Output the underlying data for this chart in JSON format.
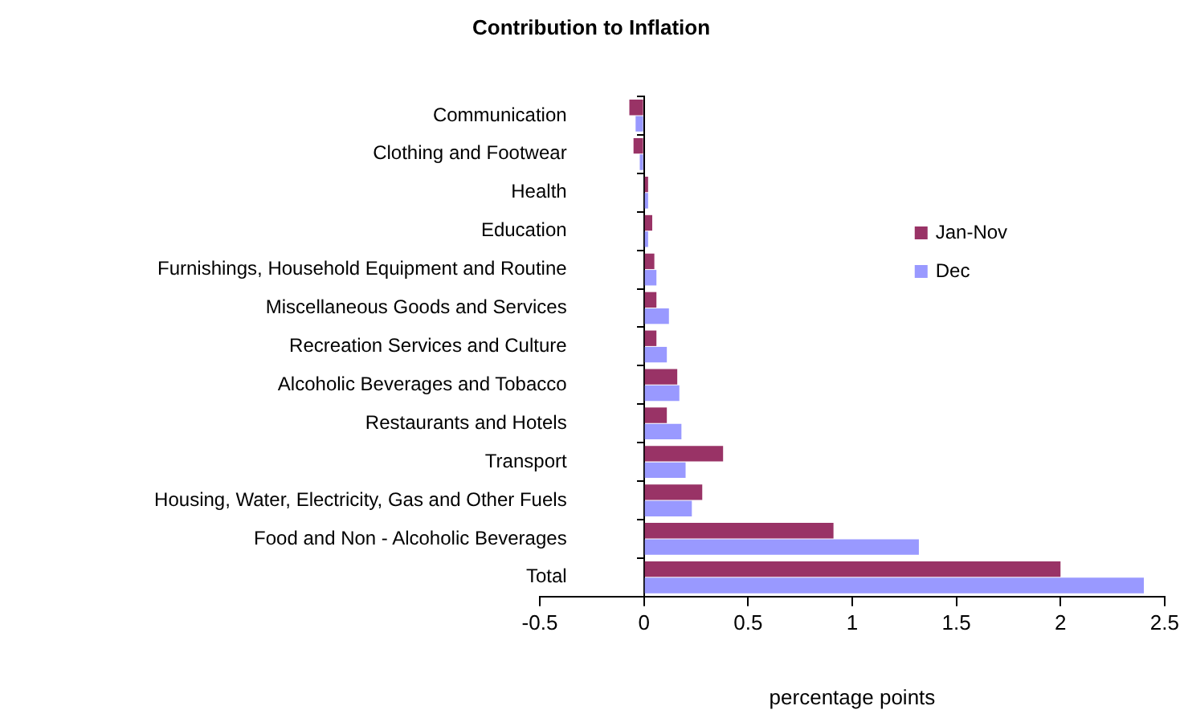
{
  "chart_data": {
    "type": "bar",
    "orientation": "horizontal",
    "title": "Contribution to Inflation",
    "xlabel": "percentage points",
    "categories": [
      "Communication",
      "Clothing and Footwear",
      "Health",
      "Education",
      "Furnishings, Household Equipment and Routine",
      "Miscellaneous Goods and Services",
      "Recreation Services and Culture",
      "Alcoholic Beverages and Tobacco",
      "Restaurants and Hotels",
      "Transport",
      "Housing, Water, Electricity, Gas and Other Fuels",
      "Food and Non - Alcoholic Beverages",
      "Total"
    ],
    "series": [
      {
        "name": "Jan-Nov",
        "color": "#993366",
        "values": [
          -0.07,
          -0.05,
          0.02,
          0.04,
          0.05,
          0.06,
          0.06,
          0.16,
          0.11,
          0.38,
          0.28,
          0.91,
          2.0
        ]
      },
      {
        "name": "Dec",
        "color": "#9999ff",
        "values": [
          -0.04,
          -0.02,
          0.02,
          0.02,
          0.06,
          0.12,
          0.11,
          0.17,
          0.18,
          0.2,
          0.23,
          1.32,
          2.4
        ]
      }
    ],
    "xlim": [
      -0.5,
      2.5
    ],
    "xticks": [
      -0.5,
      0,
      0.5,
      1,
      1.5,
      2,
      2.5
    ],
    "legend": "right"
  }
}
